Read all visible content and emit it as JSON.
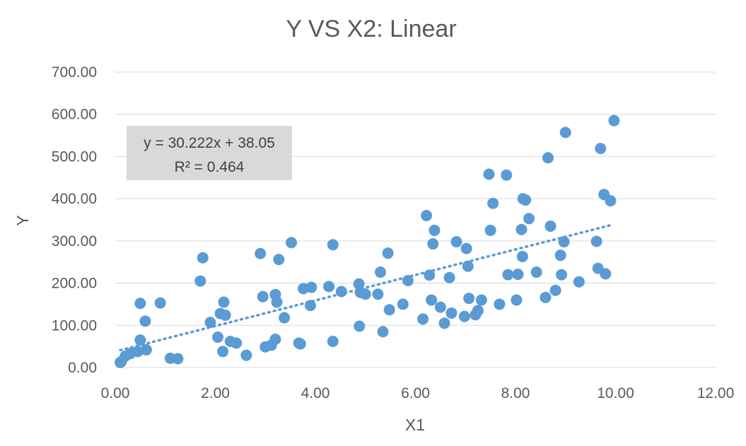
{
  "chart_data": {
    "type": "scatter",
    "title": "Y VS X2: Linear",
    "xlabel": "X1",
    "ylabel": "Y",
    "xlim": [
      0,
      12
    ],
    "ylim": [
      0,
      700
    ],
    "xticks": [
      "0.00",
      "2.00",
      "4.00",
      "6.00",
      "8.00",
      "10.00",
      "12.00"
    ],
    "yticks": [
      "0.00",
      "100.00",
      "200.00",
      "300.00",
      "400.00",
      "500.00",
      "600.00",
      "700.00"
    ],
    "grid": "horizontal",
    "colors": {
      "points": "#5b9bd5",
      "trendline": "#5b9bd5",
      "equation_box": "#d9d9d9"
    },
    "trendline": {
      "type": "linear",
      "slope": 30.222,
      "intercept": 38.05,
      "x_range": [
        0.1,
        9.9
      ],
      "equation_text": "y = 30.222x + 38.05",
      "r2_text": "R² = 0.464"
    },
    "points": [
      [
        0.1,
        12
      ],
      [
        0.12,
        14
      ],
      [
        0.2,
        27
      ],
      [
        0.3,
        33
      ],
      [
        0.45,
        38
      ],
      [
        0.5,
        65
      ],
      [
        0.5,
        152
      ],
      [
        0.6,
        110
      ],
      [
        0.62,
        42
      ],
      [
        0.9,
        153
      ],
      [
        1.1,
        22
      ],
      [
        1.25,
        21
      ],
      [
        1.7,
        205
      ],
      [
        1.75,
        260
      ],
      [
        1.9,
        107
      ],
      [
        2.05,
        72
      ],
      [
        2.1,
        128
      ],
      [
        2.15,
        38
      ],
      [
        2.17,
        155
      ],
      [
        2.2,
        124
      ],
      [
        2.3,
        62
      ],
      [
        2.42,
        58
      ],
      [
        2.62,
        29
      ],
      [
        2.9,
        270
      ],
      [
        2.95,
        168
      ],
      [
        3.0,
        49
      ],
      [
        3.12,
        53
      ],
      [
        3.2,
        67
      ],
      [
        3.2,
        173
      ],
      [
        3.23,
        155
      ],
      [
        3.27,
        256
      ],
      [
        3.38,
        118
      ],
      [
        3.52,
        296
      ],
      [
        3.67,
        58
      ],
      [
        3.7,
        56
      ],
      [
        3.76,
        187
      ],
      [
        3.9,
        147
      ],
      [
        3.92,
        190
      ],
      [
        4.27,
        192
      ],
      [
        4.35,
        62
      ],
      [
        4.35,
        291
      ],
      [
        4.52,
        180
      ],
      [
        4.87,
        198
      ],
      [
        4.88,
        98
      ],
      [
        4.9,
        178
      ],
      [
        5.0,
        174
      ],
      [
        5.25,
        174
      ],
      [
        5.3,
        226
      ],
      [
        5.35,
        85
      ],
      [
        5.45,
        271
      ],
      [
        5.48,
        137
      ],
      [
        5.75,
        150
      ],
      [
        5.85,
        206
      ],
      [
        6.15,
        115
      ],
      [
        6.22,
        360
      ],
      [
        6.28,
        219
      ],
      [
        6.32,
        160
      ],
      [
        6.35,
        293
      ],
      [
        6.38,
        325
      ],
      [
        6.5,
        143
      ],
      [
        6.58,
        105
      ],
      [
        6.68,
        213
      ],
      [
        6.72,
        129
      ],
      [
        6.82,
        298
      ],
      [
        6.98,
        121
      ],
      [
        7.02,
        282
      ],
      [
        7.05,
        240
      ],
      [
        7.07,
        164
      ],
      [
        7.2,
        125
      ],
      [
        7.25,
        135
      ],
      [
        7.32,
        160
      ],
      [
        7.47,
        458
      ],
      [
        7.5,
        325
      ],
      [
        7.55,
        389
      ],
      [
        7.68,
        150
      ],
      [
        7.82,
        456
      ],
      [
        7.85,
        220
      ],
      [
        8.02,
        160
      ],
      [
        8.05,
        221
      ],
      [
        8.12,
        327
      ],
      [
        8.14,
        263
      ],
      [
        8.15,
        400
      ],
      [
        8.2,
        397
      ],
      [
        8.27,
        353
      ],
      [
        8.42,
        226
      ],
      [
        8.6,
        166
      ],
      [
        8.65,
        497
      ],
      [
        8.7,
        335
      ],
      [
        8.8,
        183
      ],
      [
        8.9,
        266
      ],
      [
        8.92,
        220
      ],
      [
        8.97,
        298
      ],
      [
        9.0,
        557
      ],
      [
        9.27,
        203
      ],
      [
        9.62,
        299
      ],
      [
        9.65,
        235
      ],
      [
        9.7,
        519
      ],
      [
        9.77,
        410
      ],
      [
        9.8,
        222
      ],
      [
        9.9,
        395
      ],
      [
        9.97,
        585
      ]
    ]
  }
}
